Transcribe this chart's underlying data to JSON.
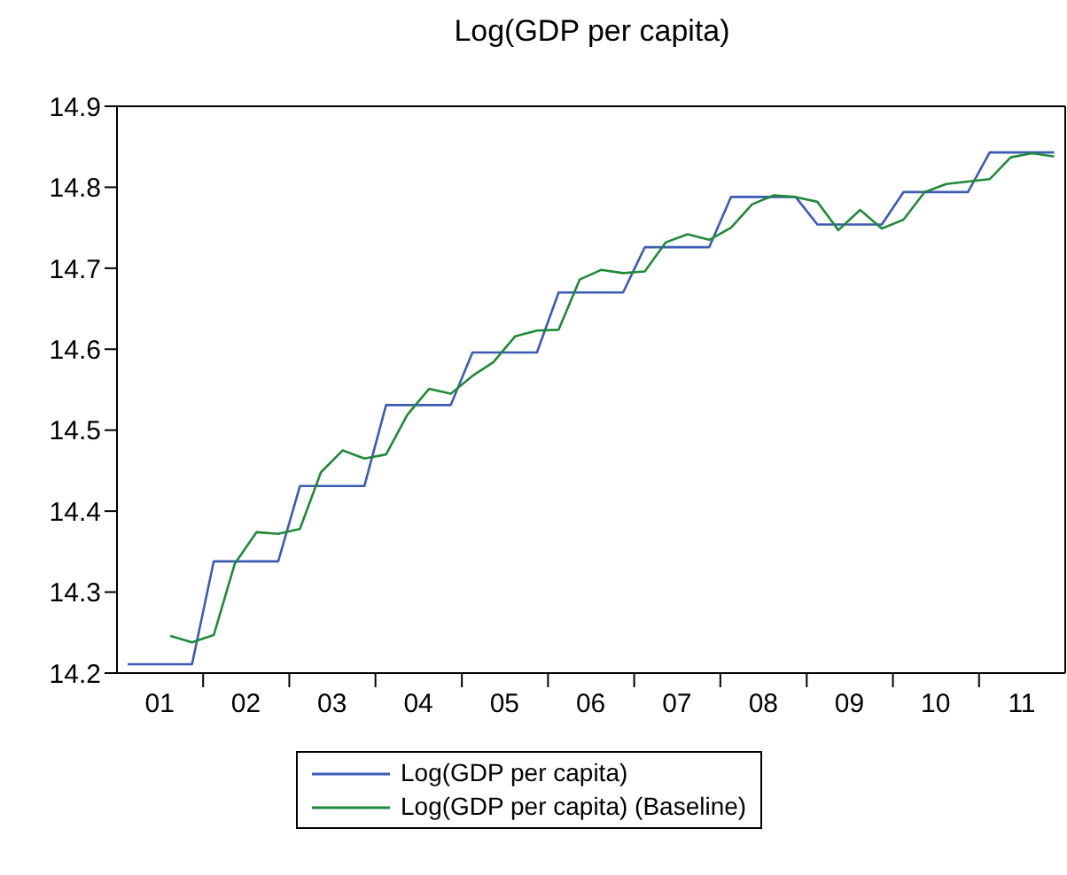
{
  "chart_data": {
    "type": "line",
    "title": "Log(GDP per capita)",
    "x": [
      "2001-02-15",
      "2001-05-15",
      "2001-08-15",
      "2001-11-15",
      "2002-02-15",
      "2002-05-15",
      "2002-08-15",
      "2002-11-15",
      "2003-02-15",
      "2003-05-15",
      "2003-08-15",
      "2003-11-15",
      "2004-02-15",
      "2004-05-15",
      "2004-08-15",
      "2004-11-15",
      "2005-02-15",
      "2005-05-15",
      "2005-08-15",
      "2005-11-15",
      "2006-02-15",
      "2006-05-15",
      "2006-08-15",
      "2006-11-15",
      "2007-02-15",
      "2007-05-15",
      "2007-08-15",
      "2007-11-15",
      "2008-02-15",
      "2008-05-15",
      "2008-08-15",
      "2008-11-15",
      "2009-02-15",
      "2009-05-15",
      "2009-08-15",
      "2009-11-15",
      "2010-02-15",
      "2010-05-15",
      "2010-08-15",
      "2010-11-15",
      "2011-02-15",
      "2011-05-15",
      "2011-08-15",
      "2011-11-15"
    ],
    "series": [
      {
        "name": "Log(GDP per capita)",
        "color": "#3b5bb5",
        "values": [
          14.211,
          14.211,
          14.211,
          14.211,
          14.338,
          14.338,
          14.338,
          14.338,
          14.431,
          14.431,
          14.431,
          14.431,
          14.531,
          14.531,
          14.531,
          14.531,
          14.596,
          14.596,
          14.596,
          14.596,
          14.67,
          14.67,
          14.67,
          14.67,
          14.726,
          14.726,
          14.726,
          14.726,
          14.788,
          14.788,
          14.788,
          14.788,
          14.754,
          14.754,
          14.754,
          14.754,
          14.794,
          14.794,
          14.794,
          14.794,
          14.843,
          14.843,
          14.843,
          14.843
        ]
      },
      {
        "name": "Log(GDP per capita) (Baseline)",
        "color": "#1f8a3a",
        "values": [
          null,
          null,
          14.246,
          14.238,
          14.247,
          14.335,
          14.374,
          14.372,
          14.378,
          14.448,
          14.475,
          14.465,
          14.47,
          14.519,
          14.551,
          14.545,
          14.567,
          14.584,
          14.616,
          14.623,
          14.624,
          14.686,
          14.698,
          14.694,
          14.696,
          14.732,
          14.742,
          14.735,
          14.75,
          14.779,
          14.79,
          14.788,
          14.782,
          14.747,
          14.772,
          14.749,
          14.76,
          14.794,
          14.804,
          14.807,
          14.81,
          14.837,
          14.842,
          14.838
        ]
      }
    ],
    "xlim": [
      "2001-01-01",
      "2012-01-01"
    ],
    "xticks": [
      {
        "value": "2001-07-01",
        "label": "01"
      },
      {
        "value": "2002-01-01",
        "label": null
      },
      {
        "value": "2002-07-01",
        "label": "02"
      },
      {
        "value": "2003-01-01",
        "label": null
      },
      {
        "value": "2003-07-01",
        "label": "03"
      },
      {
        "value": "2004-01-01",
        "label": null
      },
      {
        "value": "2004-07-01",
        "label": "04"
      },
      {
        "value": "2005-01-01",
        "label": null
      },
      {
        "value": "2005-07-01",
        "label": "05"
      },
      {
        "value": "2006-01-01",
        "label": null
      },
      {
        "value": "2006-07-01",
        "label": "06"
      },
      {
        "value": "2007-01-01",
        "label": null
      },
      {
        "value": "2007-07-01",
        "label": "07"
      },
      {
        "value": "2008-01-01",
        "label": null
      },
      {
        "value": "2008-07-01",
        "label": "08"
      },
      {
        "value": "2009-01-01",
        "label": null
      },
      {
        "value": "2009-07-01",
        "label": "09"
      },
      {
        "value": "2010-01-01",
        "label": null
      },
      {
        "value": "2010-07-01",
        "label": "10"
      },
      {
        "value": "2011-01-01",
        "label": null
      },
      {
        "value": "2011-07-01",
        "label": "11"
      }
    ],
    "ylim": [
      14.2,
      14.9
    ],
    "yticks": [
      14.2,
      14.3,
      14.4,
      14.5,
      14.6,
      14.7,
      14.8,
      14.9
    ],
    "grid": false,
    "legend": "bottom",
    "marker": "none",
    "line_style": "solid"
  }
}
